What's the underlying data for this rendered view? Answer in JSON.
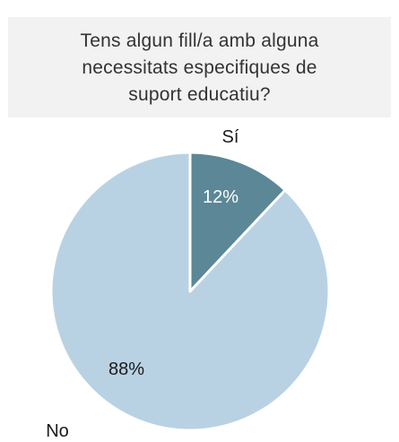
{
  "chart_data": {
    "type": "pie",
    "title_lines": [
      "Tens algun fill/a amb alguna",
      "necessitats especifiques de",
      "suport educatiu?"
    ],
    "slices": [
      {
        "name": "Sí",
        "value": 12,
        "label": "12%",
        "color": "#5b8796"
      },
      {
        "name": "No",
        "value": 88,
        "label": "88%",
        "color": "#b9d2e3"
      }
    ],
    "start_angle_deg": 0,
    "direction": "clockwise",
    "legend": "none"
  }
}
